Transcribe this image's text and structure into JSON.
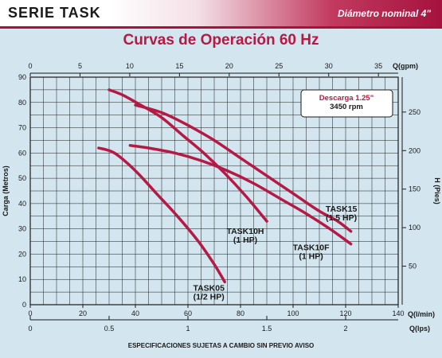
{
  "header": {
    "series_title": "SERIE TASK",
    "nominal_diameter": "Diámetro nominal 4\""
  },
  "footer_note": "ESPECIFICACIONES SUJETAS A CAMBIO SIN PREVIO AVISO",
  "colors": {
    "accent": "#a5123d",
    "curve": "#b51a44",
    "background": "#d3e5ee"
  },
  "chart_data": {
    "type": "line",
    "title": "Curvas de Operación 60 Hz",
    "annotation": [
      "Descarga 1.25\"",
      "3450 rpm"
    ],
    "grid": true,
    "axes": {
      "x_bottom": {
        "label": "Q(l/min)",
        "range": [
          0,
          140
        ],
        "ticks": [
          0,
          20,
          40,
          60,
          80,
          100,
          120,
          140
        ]
      },
      "x_bottom2": {
        "label": "Q(lps)",
        "ticks": [
          0,
          0.5,
          1,
          1.5,
          2
        ]
      },
      "x_top": {
        "label": "Q(gpm)",
        "range": [
          0,
          37
        ],
        "ticks": [
          0,
          5,
          10,
          15,
          20,
          25,
          30,
          35
        ]
      },
      "y_left": {
        "label": "Carga (Metros)",
        "range": [
          0,
          90
        ],
        "ticks": [
          0,
          10,
          20,
          30,
          40,
          50,
          60,
          70,
          80,
          90
        ]
      },
      "y_right": {
        "label": "H (Pies)",
        "ticks": [
          50,
          100,
          150,
          200,
          250
        ]
      }
    },
    "series": [
      {
        "name": "TASK05",
        "label_lines": [
          "TASK05",
          "(1/2 HP)"
        ],
        "x": [
          26,
          32,
          40,
          48,
          56,
          64,
          70,
          74
        ],
        "y": [
          62,
          60,
          53,
          44,
          35,
          25,
          16,
          9
        ]
      },
      {
        "name": "TASK10H",
        "label_lines": [
          "TASK10H",
          "(1 HP)"
        ],
        "x": [
          30,
          35,
          42,
          50,
          58,
          66,
          74,
          82,
          90
        ],
        "y": [
          85,
          83,
          79,
          74,
          67,
          60,
          52,
          43,
          33
        ]
      },
      {
        "name": "TASK10F",
        "label_lines": [
          "TASK10F",
          "(1 HP)"
        ],
        "x": [
          38,
          45,
          55,
          65,
          75,
          85,
          95,
          105,
          114,
          122
        ],
        "y": [
          63,
          62,
          60,
          57,
          53,
          48,
          42,
          36,
          30,
          24
        ]
      },
      {
        "name": "TASK15",
        "label_lines": [
          "TASK15",
          "(1.5 HP)"
        ],
        "x": [
          40,
          50,
          60,
          70,
          80,
          90,
          100,
          110,
          117,
          122
        ],
        "y": [
          79,
          76,
          71,
          65,
          58,
          51,
          44,
          37,
          33,
          29
        ]
      }
    ],
    "series_label_positions": [
      "below-end",
      "below-end",
      "below-end",
      "above-end"
    ]
  }
}
